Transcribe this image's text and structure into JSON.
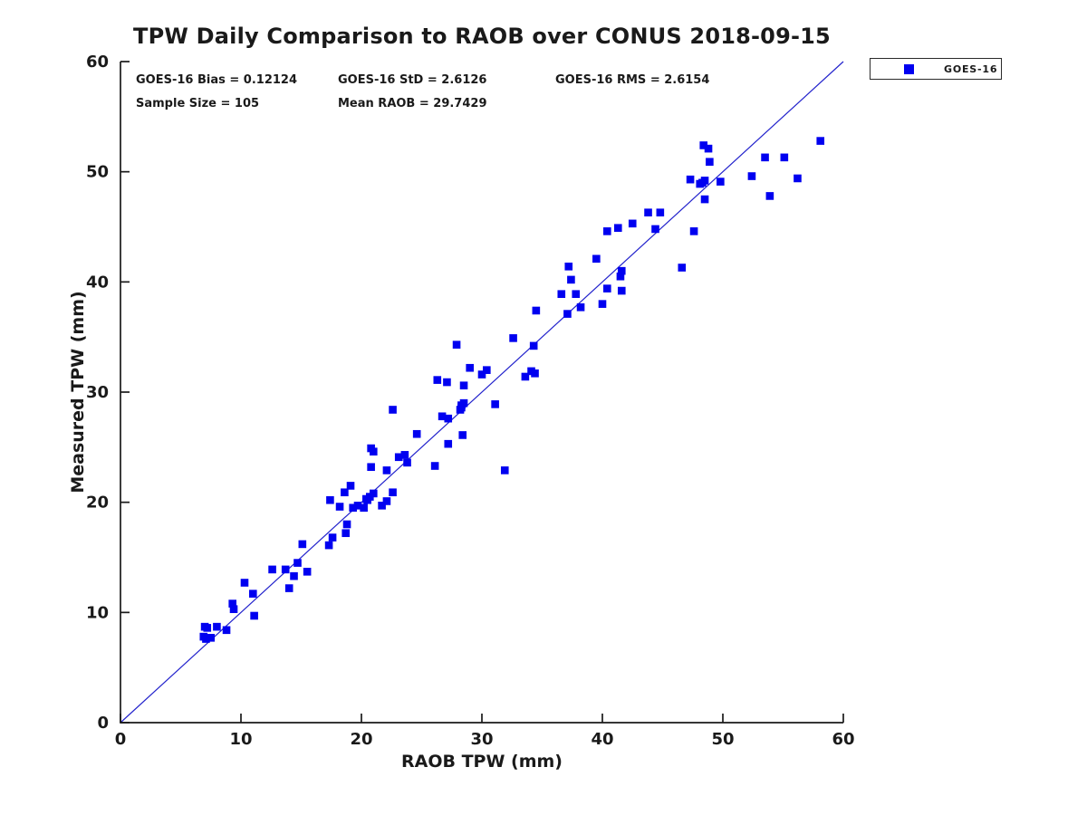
{
  "title": "TPW Daily Comparison to RAOB over CONUS 2018-09-15",
  "stats": {
    "bias": "GOES-16 Bias = 0.12124",
    "std": "GOES-16 StD = 2.6126",
    "rms": "GOES-16 RMS = 2.6154",
    "sample_size": "Sample Size = 105",
    "mean_raob": "Mean RAOB = 29.7429"
  },
  "legend": {
    "label": "GOES-16",
    "marker_color": "#0000f0",
    "position": "top-right-outside"
  },
  "colors": {
    "marker": "#0000f0",
    "reference_line": "#2222cc",
    "axis": "#1a1a1a",
    "text": "#1a1a1a",
    "background": "#ffffff"
  },
  "chart_data": {
    "type": "scatter",
    "title": "TPW Daily Comparison to RAOB over CONUS 2018-09-15",
    "xlabel": "RAOB TPW (mm)",
    "ylabel": "Measured TPW (mm)",
    "xlim": [
      0,
      60
    ],
    "ylim": [
      0,
      60
    ],
    "xticks": [
      0,
      10,
      20,
      30,
      40,
      50,
      60
    ],
    "yticks": [
      0,
      10,
      20,
      30,
      40,
      50,
      60
    ],
    "grid": false,
    "marker": "square",
    "reference_line": {
      "type": "identity",
      "from": [
        0,
        0
      ],
      "to": [
        60,
        60
      ]
    },
    "series": [
      {
        "name": "GOES-16",
        "color": "#0000f0",
        "points": [
          [
            6.9,
            7.8
          ],
          [
            7.1,
            7.6
          ],
          [
            7.5,
            7.7
          ],
          [
            7.0,
            8.7
          ],
          [
            7.2,
            8.6
          ],
          [
            8.0,
            8.7
          ],
          [
            8.8,
            8.4
          ],
          [
            9.3,
            10.8
          ],
          [
            9.4,
            10.3
          ],
          [
            10.3,
            12.7
          ],
          [
            11.0,
            11.7
          ],
          [
            11.1,
            9.7
          ],
          [
            12.6,
            13.9
          ],
          [
            13.7,
            13.9
          ],
          [
            14.0,
            12.2
          ],
          [
            14.4,
            13.3
          ],
          [
            14.7,
            14.5
          ],
          [
            15.1,
            16.2
          ],
          [
            15.5,
            13.7
          ],
          [
            17.3,
            16.1
          ],
          [
            17.6,
            16.8
          ],
          [
            18.7,
            17.2
          ],
          [
            18.8,
            18.0
          ],
          [
            17.4,
            20.2
          ],
          [
            18.2,
            19.6
          ],
          [
            18.6,
            20.9
          ],
          [
            19.1,
            21.5
          ],
          [
            19.3,
            19.5
          ],
          [
            19.7,
            19.7
          ],
          [
            20.2,
            19.5
          ],
          [
            20.4,
            20.3
          ],
          [
            20.5,
            20.2
          ],
          [
            20.7,
            20.5
          ],
          [
            21.0,
            20.8
          ],
          [
            21.7,
            19.7
          ],
          [
            22.1,
            20.1
          ],
          [
            22.6,
            20.9
          ],
          [
            20.8,
            23.2
          ],
          [
            20.8,
            24.9
          ],
          [
            21.0,
            24.6
          ],
          [
            22.1,
            22.9
          ],
          [
            22.6,
            28.4
          ],
          [
            23.1,
            24.1
          ],
          [
            23.6,
            24.3
          ],
          [
            23.8,
            23.6
          ],
          [
            24.6,
            26.2
          ],
          [
            26.1,
            23.3
          ],
          [
            27.2,
            25.3
          ],
          [
            26.3,
            31.1
          ],
          [
            27.1,
            30.9
          ],
          [
            28.5,
            30.6
          ],
          [
            27.9,
            34.3
          ],
          [
            26.7,
            27.8
          ],
          [
            27.2,
            27.6
          ],
          [
            28.2,
            28.4
          ],
          [
            28.3,
            28.8
          ],
          [
            28.3,
            28.6
          ],
          [
            28.5,
            29.0
          ],
          [
            28.4,
            26.1
          ],
          [
            29.0,
            32.2
          ],
          [
            30.0,
            31.6
          ],
          [
            30.4,
            32.0
          ],
          [
            31.1,
            28.9
          ],
          [
            31.9,
            22.9
          ],
          [
            32.6,
            34.9
          ],
          [
            34.3,
            34.2
          ],
          [
            34.5,
            37.4
          ],
          [
            33.6,
            31.4
          ],
          [
            34.1,
            31.9
          ],
          [
            34.4,
            31.7
          ],
          [
            36.6,
            38.9
          ],
          [
            37.8,
            38.9
          ],
          [
            37.2,
            41.4
          ],
          [
            37.4,
            40.2
          ],
          [
            37.1,
            37.1
          ],
          [
            38.2,
            37.7
          ],
          [
            39.5,
            42.1
          ],
          [
            40.0,
            38.0
          ],
          [
            40.4,
            39.4
          ],
          [
            41.6,
            39.2
          ],
          [
            41.6,
            41.0
          ],
          [
            41.5,
            40.5
          ],
          [
            40.4,
            44.6
          ],
          [
            41.3,
            44.9
          ],
          [
            42.5,
            45.3
          ],
          [
            43.8,
            46.3
          ],
          [
            44.8,
            46.3
          ],
          [
            44.4,
            44.8
          ],
          [
            46.6,
            41.3
          ],
          [
            47.6,
            44.6
          ],
          [
            48.5,
            47.5
          ],
          [
            47.3,
            49.3
          ],
          [
            48.1,
            48.9
          ],
          [
            48.3,
            49.0
          ],
          [
            48.5,
            49.2
          ],
          [
            49.8,
            49.1
          ],
          [
            52.4,
            49.6
          ],
          [
            56.2,
            49.4
          ],
          [
            48.9,
            50.9
          ],
          [
            48.4,
            52.4
          ],
          [
            48.8,
            52.1
          ],
          [
            53.5,
            51.3
          ],
          [
            55.1,
            51.3
          ],
          [
            53.9,
            47.8
          ],
          [
            58.1,
            52.8
          ]
        ]
      }
    ]
  }
}
